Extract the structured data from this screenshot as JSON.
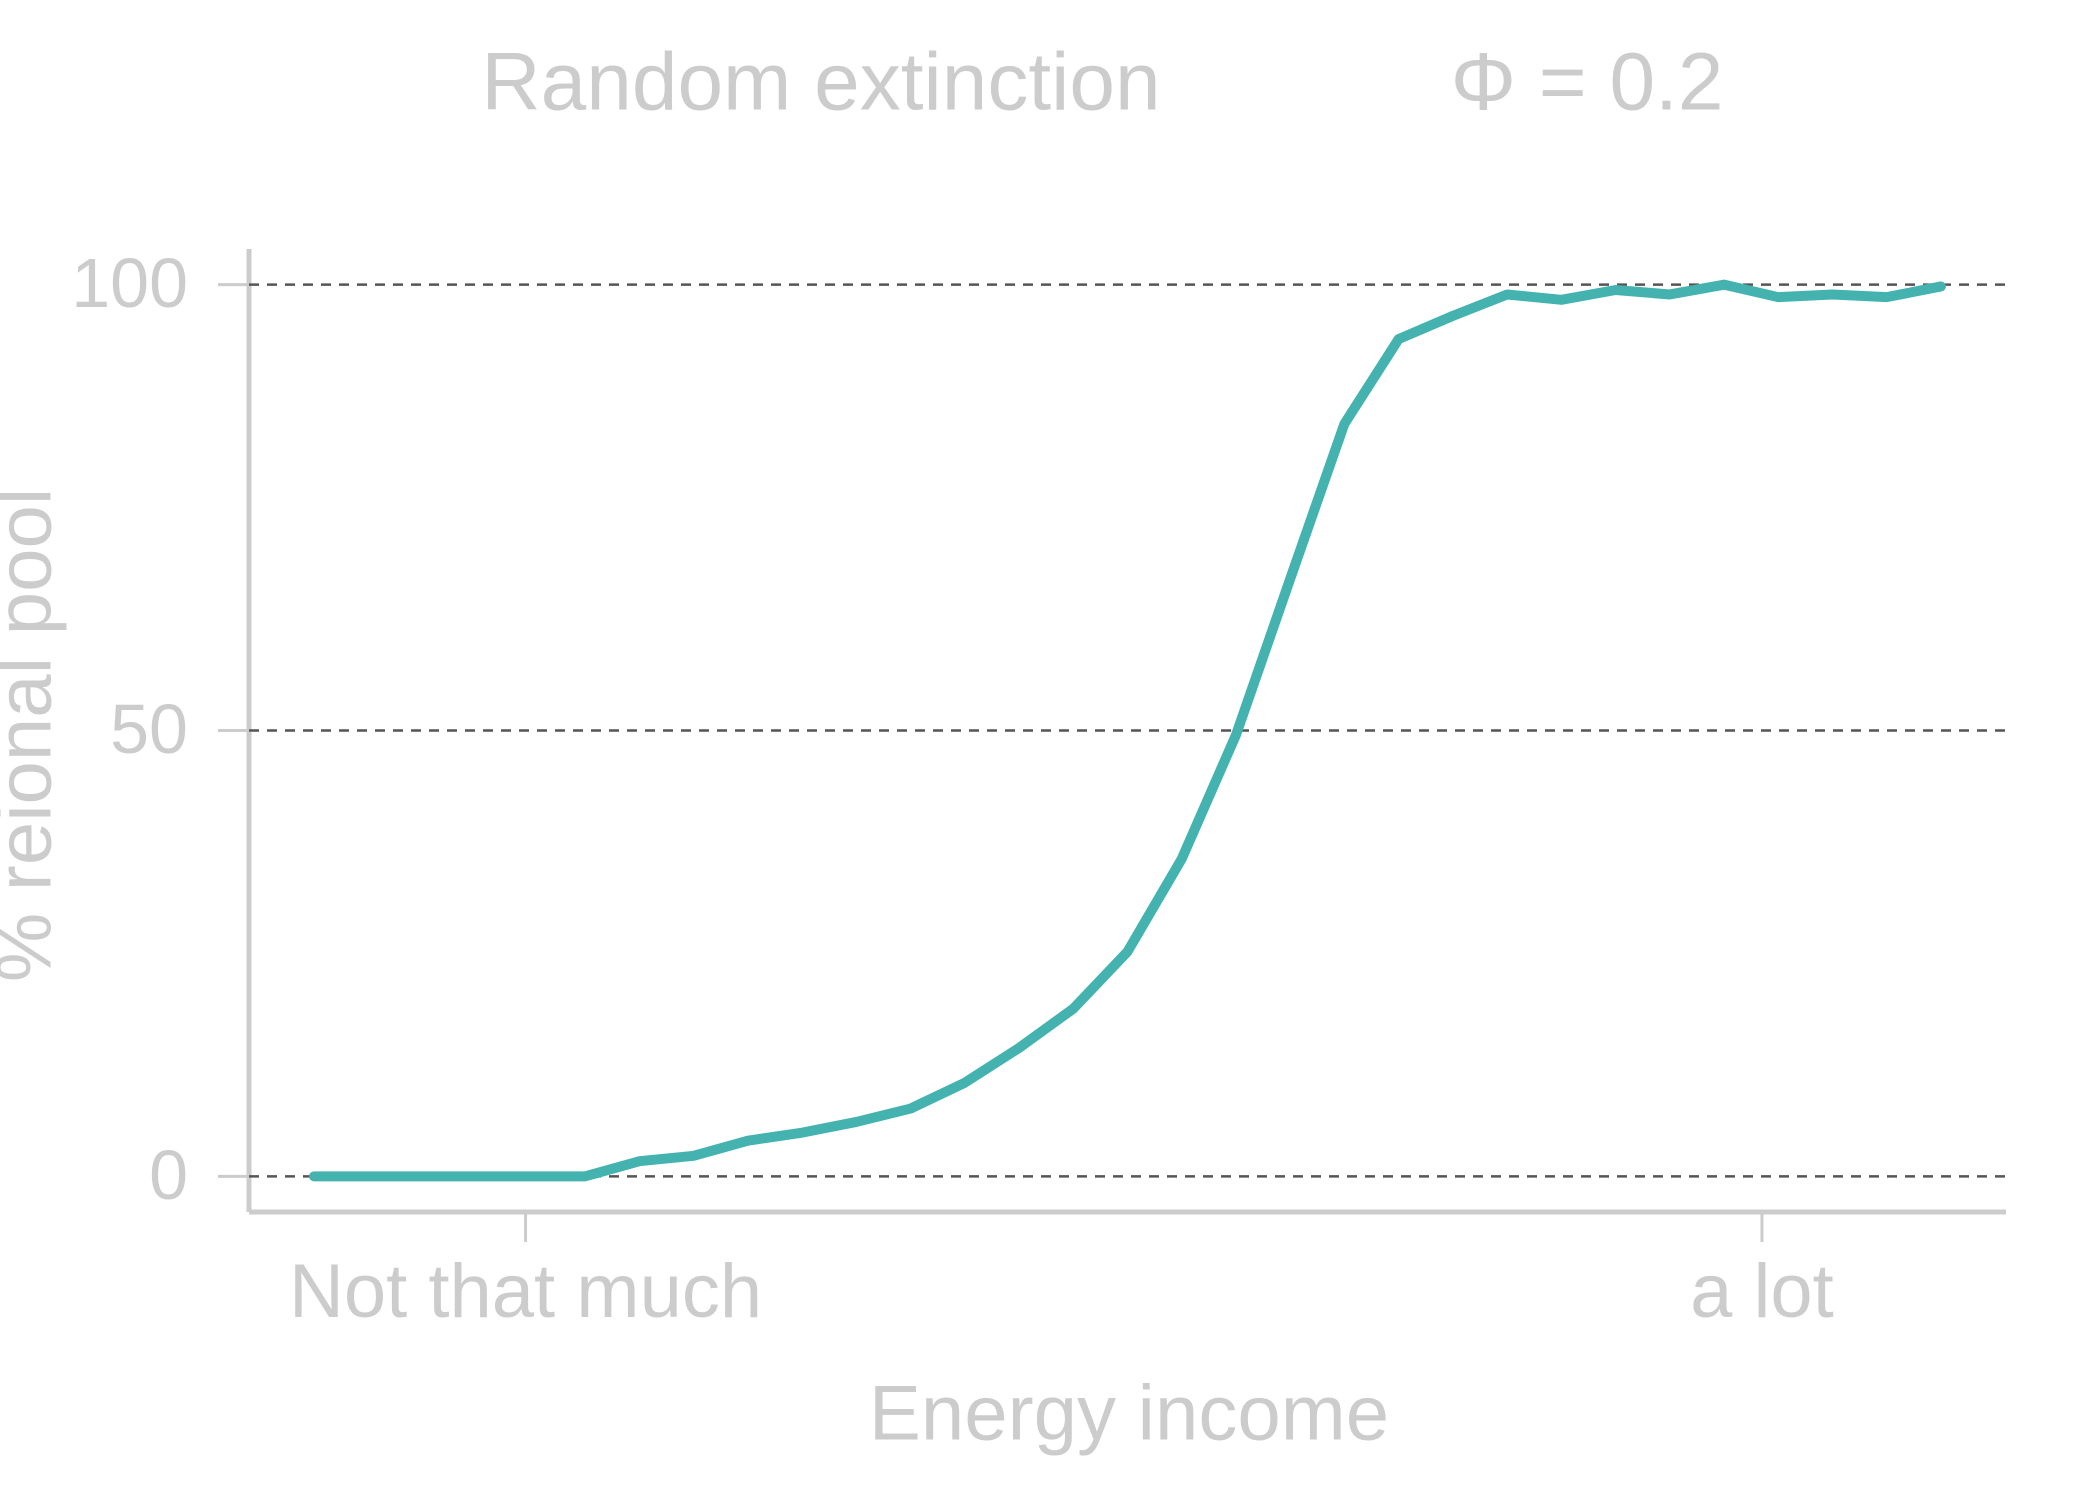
{
  "chart_data": {
    "type": "line",
    "title": "Random extinction",
    "annotation": "Φ = 0.2",
    "x_label": "Energy income",
    "y_label": "% reional pool",
    "x": [
      1,
      2,
      3,
      4,
      5,
      6,
      7,
      8,
      9,
      10,
      11,
      12,
      13,
      14,
      15,
      16,
      17,
      18,
      19,
      20,
      21,
      22,
      23,
      24,
      25,
      26,
      27,
      28,
      29,
      30,
      31
    ],
    "series": [
      {
        "name": "Random extinction",
        "color": "#44b3b0",
        "values": [
          0,
          0,
          0,
          0,
          0,
          0,
          1.7,
          2.3,
          4,
          4.9,
          6.1,
          7.6,
          10.5,
          14.4,
          18.8,
          25.2,
          35.6,
          49.5,
          67,
          84.4,
          93.9,
          96.5,
          98.9,
          98.3,
          99.4,
          98.9,
          100,
          98.6,
          98.9,
          98.6,
          99.8
        ]
      }
    ],
    "xlim": [
      -0.2,
      32.2
    ],
    "xticks": [
      {
        "value": 4.9,
        "label": "Not that much"
      },
      {
        "value": 27.7,
        "label": "a lot"
      }
    ],
    "ylim": [
      -4,
      104
    ],
    "yticks": [
      0,
      50,
      100
    ],
    "grid": true
  }
}
